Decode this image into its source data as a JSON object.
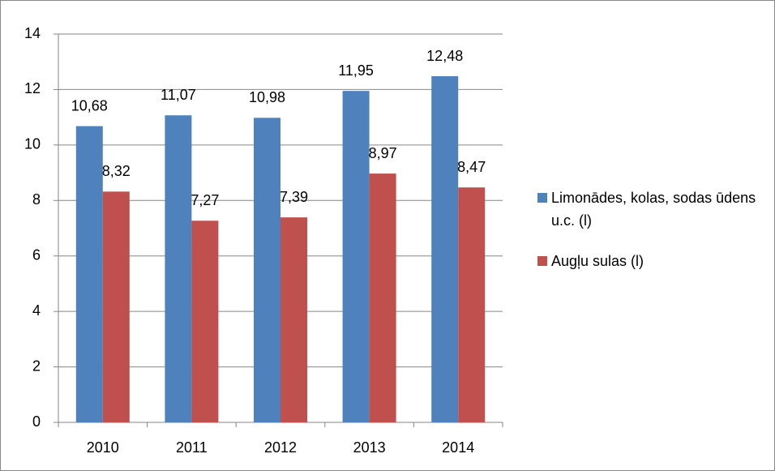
{
  "chart_data": {
    "type": "bar",
    "categories": [
      "2010",
      "2011",
      "2012",
      "2013",
      "2014"
    ],
    "series": [
      {
        "name": "Limonādes, kolas, sodas ūdens u.c. (l)",
        "color": "#4f81bd",
        "values": [
          10.68,
          11.07,
          10.98,
          11.95,
          12.48
        ],
        "value_labels": [
          "10,68",
          "11,07",
          "10,98",
          "11,95",
          "12,48"
        ]
      },
      {
        "name": "Augļu sulas (l)",
        "color": "#c0504d",
        "values": [
          8.32,
          7.27,
          7.39,
          8.97,
          8.47
        ],
        "value_labels": [
          "8,32",
          "7,27",
          "7,39",
          "8,97",
          "8,47"
        ]
      }
    ],
    "ylim": [
      0,
      14
    ],
    "yticks": [
      0,
      2,
      4,
      6,
      8,
      10,
      12,
      14
    ],
    "grid": true,
    "legend": "right"
  }
}
